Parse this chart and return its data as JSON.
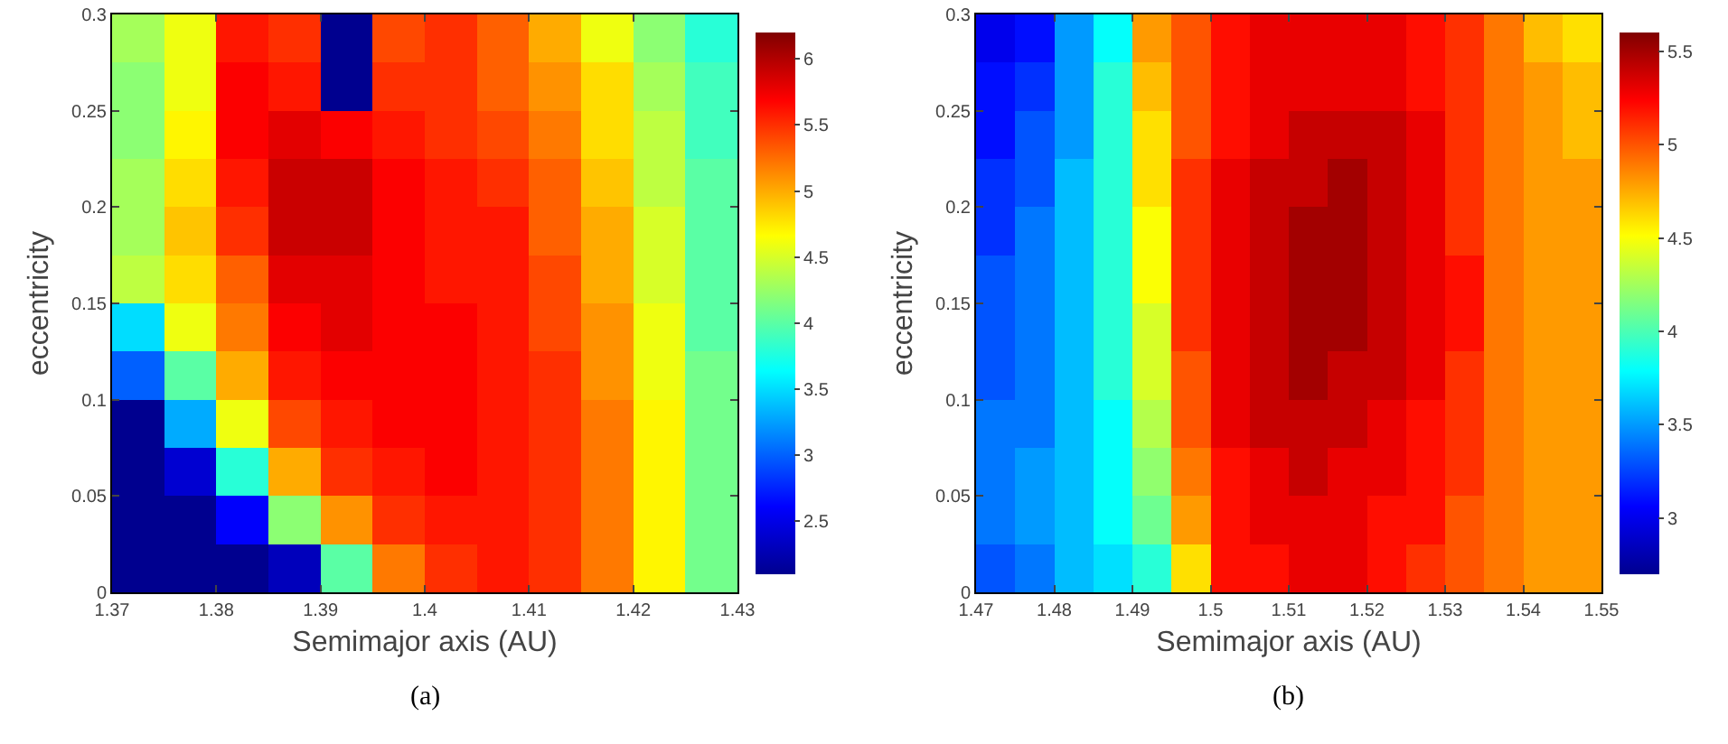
{
  "chart_data": [
    {
      "type": "heatmap",
      "xlabel": "Semimajor axis (AU)",
      "ylabel": "eccentricity",
      "annotations": [
        "(a)"
      ],
      "x": [
        1.3725,
        1.3775,
        1.3825,
        1.3875,
        1.3925,
        1.3975,
        1.4025,
        1.4075,
        1.4125,
        1.4175,
        1.4225,
        1.4275
      ],
      "y": [
        0.2875,
        0.2625,
        0.2375,
        0.2125,
        0.1875,
        0.1625,
        0.1375,
        0.1125,
        0.0875,
        0.0625,
        0.0375,
        0.0125
      ],
      "cells": [
        [
          4.3,
          4.6,
          5.6,
          5.5,
          2.1,
          5.4,
          5.5,
          5.3,
          5.0,
          4.6,
          4.2,
          3.8
        ],
        [
          4.2,
          4.6,
          5.7,
          5.6,
          2.1,
          5.5,
          5.5,
          5.3,
          5.1,
          4.8,
          4.3,
          3.9
        ],
        [
          4.2,
          4.7,
          5.7,
          5.8,
          5.7,
          5.6,
          5.5,
          5.4,
          5.2,
          4.8,
          4.4,
          3.9
        ],
        [
          4.3,
          4.8,
          5.6,
          5.9,
          5.9,
          5.7,
          5.6,
          5.5,
          5.3,
          4.9,
          4.4,
          4.0
        ],
        [
          4.3,
          4.9,
          5.5,
          5.9,
          5.9,
          5.7,
          5.6,
          5.6,
          5.3,
          5.0,
          4.5,
          4.0
        ],
        [
          4.4,
          4.8,
          5.3,
          5.8,
          5.8,
          5.7,
          5.6,
          5.6,
          5.4,
          5.0,
          4.5,
          4.0
        ],
        [
          3.5,
          4.6,
          5.2,
          5.7,
          5.8,
          5.7,
          5.7,
          5.6,
          5.4,
          5.1,
          4.6,
          4.0
        ],
        [
          3.0,
          4.0,
          5.0,
          5.6,
          5.7,
          5.7,
          5.7,
          5.6,
          5.5,
          5.1,
          4.6,
          4.1
        ],
        [
          2.1,
          3.3,
          4.6,
          5.4,
          5.6,
          5.7,
          5.7,
          5.6,
          5.5,
          5.2,
          4.7,
          4.1
        ],
        [
          2.1,
          2.4,
          3.8,
          5.0,
          5.5,
          5.6,
          5.7,
          5.6,
          5.5,
          5.2,
          4.7,
          4.1
        ],
        [
          2.1,
          2.1,
          2.6,
          4.2,
          5.1,
          5.5,
          5.6,
          5.6,
          5.5,
          5.2,
          4.7,
          4.1
        ],
        [
          2.1,
          2.1,
          2.1,
          2.3,
          4.0,
          5.2,
          5.5,
          5.6,
          5.5,
          5.2,
          4.7,
          4.1
        ]
      ],
      "xlim": [
        1.37,
        1.43
      ],
      "xticks": [
        1.37,
        1.38,
        1.39,
        1.4,
        1.41,
        1.42,
        1.43
      ],
      "ylim": [
        0,
        0.3
      ],
      "yticks": [
        0,
        0.05,
        0.1,
        0.15,
        0.2,
        0.25,
        0.3
      ],
      "clim": [
        2.1,
        6.2
      ],
      "cticks": [
        2.5,
        3,
        3.5,
        4,
        4.5,
        5,
        5.5,
        6
      ]
    },
    {
      "type": "heatmap",
      "xlabel": "Semimajor axis (AU)",
      "ylabel": "eccentricity",
      "annotations": [
        "(b)"
      ],
      "x": [
        1.4725,
        1.4775,
        1.4825,
        1.4875,
        1.4925,
        1.4975,
        1.5025,
        1.5075,
        1.5125,
        1.5175,
        1.5225,
        1.5275,
        1.5325,
        1.5375,
        1.5425,
        1.5475
      ],
      "y": [
        0.2875,
        0.2625,
        0.2375,
        0.2125,
        0.1875,
        0.1625,
        0.1375,
        0.1125,
        0.0875,
        0.0625,
        0.0375,
        0.0125
      ],
      "cells": [
        [
          3.0,
          3.1,
          3.5,
          3.8,
          4.8,
          5.0,
          5.2,
          5.3,
          5.3,
          5.3,
          5.3,
          5.2,
          5.1,
          4.9,
          4.7,
          4.6
        ],
        [
          3.1,
          3.2,
          3.5,
          3.9,
          4.7,
          5.0,
          5.2,
          5.3,
          5.3,
          5.3,
          5.3,
          5.2,
          5.1,
          4.9,
          4.8,
          4.7
        ],
        [
          3.1,
          3.3,
          3.5,
          3.9,
          4.6,
          5.0,
          5.2,
          5.3,
          5.4,
          5.4,
          5.4,
          5.3,
          5.1,
          4.9,
          4.8,
          4.7
        ],
        [
          3.2,
          3.3,
          3.6,
          3.9,
          4.6,
          5.1,
          5.3,
          5.4,
          5.4,
          5.5,
          5.4,
          5.3,
          5.1,
          4.9,
          4.8,
          4.8
        ],
        [
          3.2,
          3.4,
          3.6,
          3.9,
          4.5,
          5.1,
          5.3,
          5.4,
          5.5,
          5.5,
          5.4,
          5.3,
          5.1,
          4.9,
          4.8,
          4.8
        ],
        [
          3.3,
          3.4,
          3.6,
          3.9,
          4.5,
          5.1,
          5.3,
          5.4,
          5.5,
          5.5,
          5.4,
          5.3,
          5.2,
          4.9,
          4.8,
          4.8
        ],
        [
          3.3,
          3.4,
          3.6,
          3.9,
          4.4,
          5.1,
          5.3,
          5.4,
          5.5,
          5.5,
          5.4,
          5.3,
          5.2,
          4.9,
          4.8,
          4.8
        ],
        [
          3.3,
          3.4,
          3.6,
          3.9,
          4.4,
          5.0,
          5.3,
          5.4,
          5.5,
          5.4,
          5.4,
          5.3,
          5.1,
          4.9,
          4.8,
          4.8
        ],
        [
          3.4,
          3.4,
          3.6,
          3.8,
          4.3,
          5.0,
          5.3,
          5.4,
          5.4,
          5.4,
          5.3,
          5.2,
          5.1,
          4.9,
          4.8,
          4.8
        ],
        [
          3.4,
          3.5,
          3.6,
          3.8,
          4.2,
          4.9,
          5.2,
          5.3,
          5.4,
          5.3,
          5.3,
          5.2,
          5.1,
          4.9,
          4.8,
          4.8
        ],
        [
          3.4,
          3.5,
          3.6,
          3.8,
          4.1,
          4.8,
          5.2,
          5.3,
          5.3,
          5.3,
          5.2,
          5.2,
          5.0,
          4.9,
          4.8,
          4.8
        ],
        [
          3.3,
          3.4,
          3.6,
          3.7,
          3.9,
          4.6,
          5.2,
          5.2,
          5.3,
          5.3,
          5.2,
          5.1,
          5.0,
          4.9,
          4.8,
          4.8
        ]
      ],
      "xlim": [
        1.47,
        1.55
      ],
      "xticks": [
        1.47,
        1.48,
        1.49,
        1.5,
        1.51,
        1.52,
        1.53,
        1.54,
        1.55
      ],
      "ylim": [
        0,
        0.3
      ],
      "yticks": [
        0,
        0.05,
        0.1,
        0.15,
        0.2,
        0.25,
        0.3
      ],
      "clim": [
        2.7,
        5.6
      ],
      "cticks": [
        3,
        3.5,
        4,
        4.5,
        5,
        5.5
      ]
    }
  ]
}
